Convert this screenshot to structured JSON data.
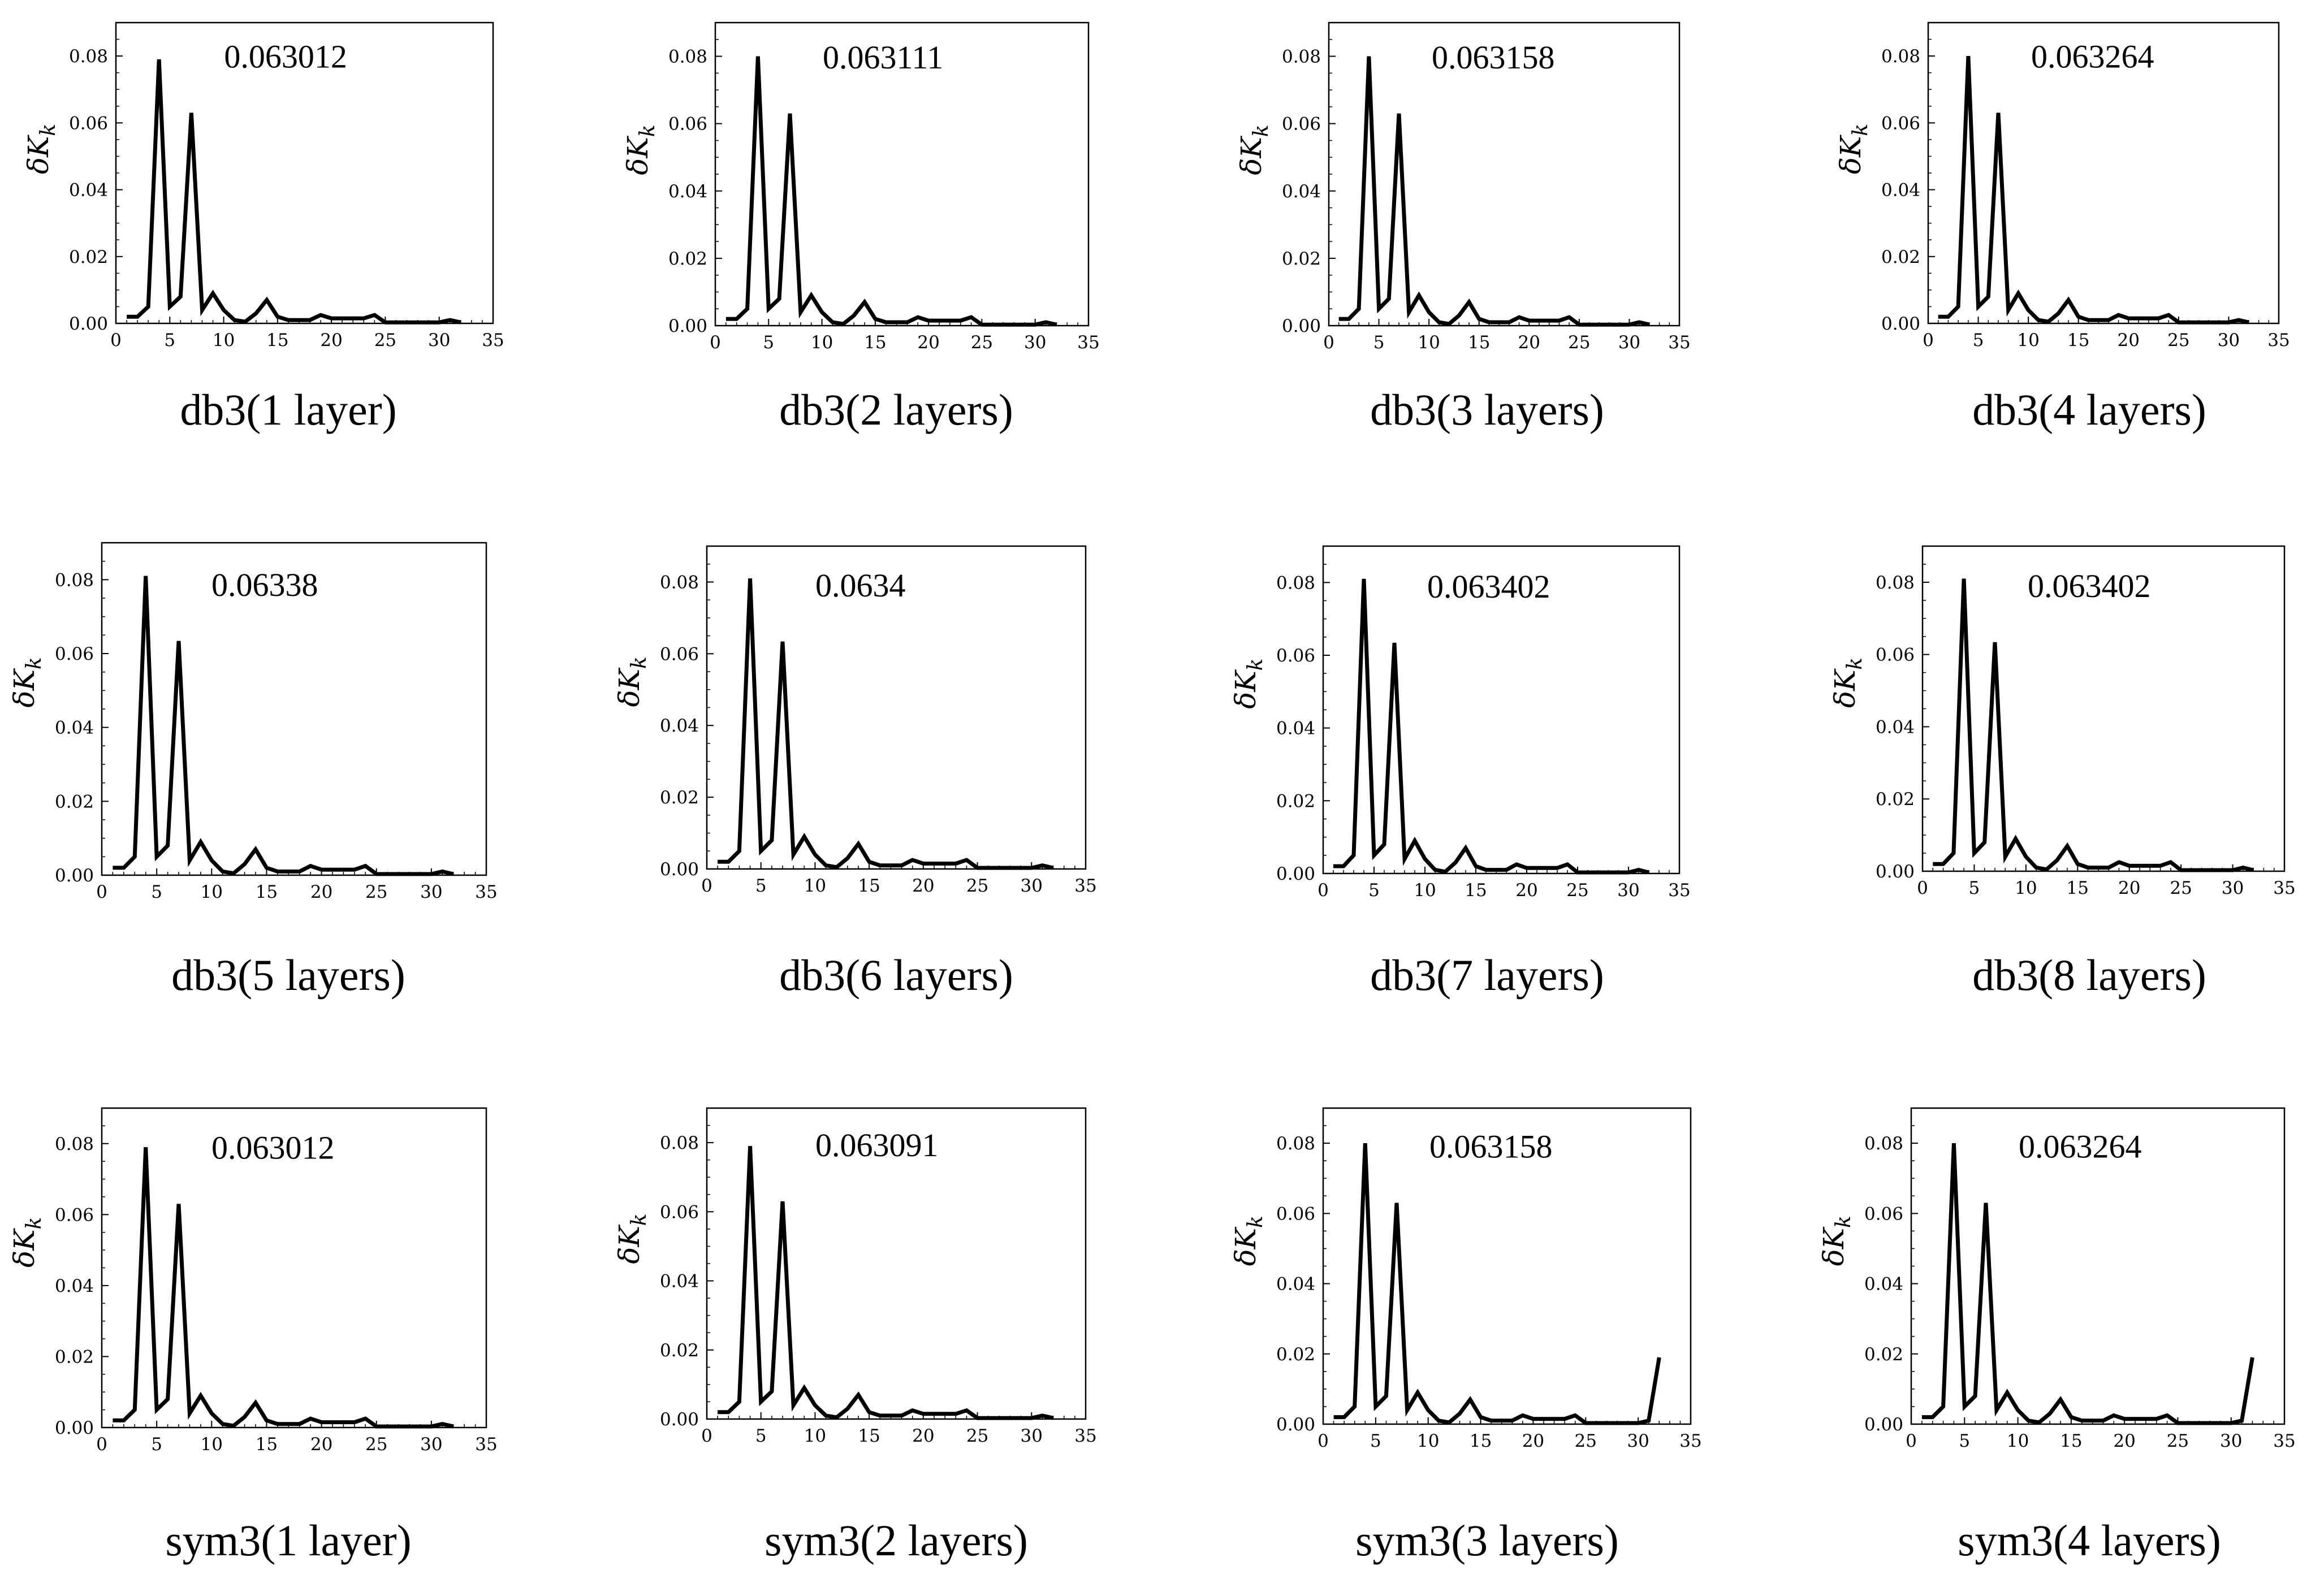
{
  "chart_data": [
    {
      "type": "line",
      "caption": "db3(1 layer)",
      "annotation": "0.063012",
      "ylabel": "δK_k",
      "xlim": [
        0,
        35
      ],
      "ylim": [
        0,
        0.09
      ],
      "xticks": [
        0,
        5,
        10,
        15,
        20,
        25,
        30,
        35
      ],
      "yticks": [
        0.0,
        0.02,
        0.04,
        0.06,
        0.08
      ],
      "series": [
        {
          "x": [
            1,
            2,
            3,
            4,
            5,
            6,
            7,
            8,
            9,
            10,
            11,
            12,
            13,
            14,
            15,
            16,
            17,
            18,
            19,
            20,
            21,
            22,
            23,
            24,
            25,
            26,
            27,
            28,
            29,
            30,
            31,
            32
          ],
          "y": [
            0.002,
            0.002,
            0.005,
            0.079,
            0.005,
            0.008,
            0.063,
            0.004,
            0.009,
            0.004,
            0.001,
            0.0005,
            0.003,
            0.007,
            0.002,
            0.001,
            0.001,
            0.001,
            0.0025,
            0.0015,
            0.0015,
            0.0015,
            0.0015,
            0.0025,
            0.0003,
            0.0003,
            0.0003,
            0.0003,
            0.0003,
            0.0003,
            0.001,
            0.0003
          ]
        }
      ]
    },
    {
      "type": "line",
      "caption": "db3(2 layers)",
      "annotation": "0.063111",
      "ylabel": "δK_k",
      "xlim": [
        0,
        35
      ],
      "ylim": [
        0,
        0.09
      ],
      "xticks": [
        0,
        5,
        10,
        15,
        20,
        25,
        30,
        35
      ],
      "yticks": [
        0.0,
        0.02,
        0.04,
        0.06,
        0.08
      ],
      "series": [
        {
          "x": [
            1,
            2,
            3,
            4,
            5,
            6,
            7,
            8,
            9,
            10,
            11,
            12,
            13,
            14,
            15,
            16,
            17,
            18,
            19,
            20,
            21,
            22,
            23,
            24,
            25,
            26,
            27,
            28,
            29,
            30,
            31,
            32
          ],
          "y": [
            0.002,
            0.002,
            0.005,
            0.08,
            0.005,
            0.008,
            0.063,
            0.004,
            0.009,
            0.004,
            0.001,
            0.0005,
            0.003,
            0.007,
            0.002,
            0.001,
            0.001,
            0.001,
            0.0025,
            0.0015,
            0.0015,
            0.0015,
            0.0015,
            0.0025,
            0.0003,
            0.0003,
            0.0003,
            0.0003,
            0.0003,
            0.0003,
            0.001,
            0.0003
          ]
        }
      ]
    },
    {
      "type": "line",
      "caption": "db3(3 layers)",
      "annotation": "0.063158",
      "ylabel": "δK_k",
      "xlim": [
        0,
        35
      ],
      "ylim": [
        0,
        0.09
      ],
      "xticks": [
        0,
        5,
        10,
        15,
        20,
        25,
        30,
        35
      ],
      "yticks": [
        0.0,
        0.02,
        0.04,
        0.06,
        0.08
      ],
      "series": [
        {
          "x": [
            1,
            2,
            3,
            4,
            5,
            6,
            7,
            8,
            9,
            10,
            11,
            12,
            13,
            14,
            15,
            16,
            17,
            18,
            19,
            20,
            21,
            22,
            23,
            24,
            25,
            26,
            27,
            28,
            29,
            30,
            31,
            32
          ],
          "y": [
            0.002,
            0.002,
            0.005,
            0.08,
            0.005,
            0.008,
            0.063,
            0.004,
            0.009,
            0.004,
            0.001,
            0.0005,
            0.003,
            0.007,
            0.002,
            0.001,
            0.001,
            0.001,
            0.0025,
            0.0015,
            0.0015,
            0.0015,
            0.0015,
            0.0025,
            0.0003,
            0.0003,
            0.0003,
            0.0003,
            0.0003,
            0.0003,
            0.001,
            0.0003
          ]
        }
      ]
    },
    {
      "type": "line",
      "caption": "db3(4 layers)",
      "annotation": "0.063264",
      "ylabel": "δK_k",
      "xlim": [
        0,
        35
      ],
      "ylim": [
        0,
        0.09
      ],
      "xticks": [
        0,
        5,
        10,
        15,
        20,
        25,
        30,
        35
      ],
      "yticks": [
        0.0,
        0.02,
        0.04,
        0.06,
        0.08
      ],
      "series": [
        {
          "x": [
            1,
            2,
            3,
            4,
            5,
            6,
            7,
            8,
            9,
            10,
            11,
            12,
            13,
            14,
            15,
            16,
            17,
            18,
            19,
            20,
            21,
            22,
            23,
            24,
            25,
            26,
            27,
            28,
            29,
            30,
            31,
            32
          ],
          "y": [
            0.002,
            0.002,
            0.005,
            0.08,
            0.005,
            0.008,
            0.063,
            0.004,
            0.009,
            0.004,
            0.001,
            0.0005,
            0.003,
            0.007,
            0.002,
            0.001,
            0.001,
            0.001,
            0.0025,
            0.0015,
            0.0015,
            0.0015,
            0.0015,
            0.0025,
            0.0003,
            0.0003,
            0.0003,
            0.0003,
            0.0003,
            0.0003,
            0.001,
            0.0003
          ]
        }
      ]
    },
    {
      "type": "line",
      "caption": "db3(5 layers)",
      "annotation": "0.06338",
      "ylabel": "δK_k",
      "xlim": [
        0,
        35
      ],
      "ylim": [
        0,
        0.09
      ],
      "xticks": [
        0,
        5,
        10,
        15,
        20,
        25,
        30,
        35
      ],
      "yticks": [
        0.0,
        0.02,
        0.04,
        0.06,
        0.08
      ],
      "series": [
        {
          "x": [
            1,
            2,
            3,
            4,
            5,
            6,
            7,
            8,
            9,
            10,
            11,
            12,
            13,
            14,
            15,
            16,
            17,
            18,
            19,
            20,
            21,
            22,
            23,
            24,
            25,
            26,
            27,
            28,
            29,
            30,
            31,
            32
          ],
          "y": [
            0.002,
            0.002,
            0.005,
            0.081,
            0.005,
            0.008,
            0.0634,
            0.004,
            0.009,
            0.004,
            0.001,
            0.0005,
            0.003,
            0.007,
            0.002,
            0.001,
            0.001,
            0.001,
            0.0025,
            0.0015,
            0.0015,
            0.0015,
            0.0015,
            0.0025,
            0.0003,
            0.0003,
            0.0003,
            0.0003,
            0.0003,
            0.0003,
            0.001,
            0.0003
          ]
        }
      ]
    },
    {
      "type": "line",
      "caption": "db3(6 layers)",
      "annotation": "0.0634",
      "ylabel": "δK_k",
      "xlim": [
        0,
        35
      ],
      "ylim": [
        0,
        0.09
      ],
      "xticks": [
        0,
        5,
        10,
        15,
        20,
        25,
        30,
        35
      ],
      "yticks": [
        0.0,
        0.02,
        0.04,
        0.06,
        0.08
      ],
      "series": [
        {
          "x": [
            1,
            2,
            3,
            4,
            5,
            6,
            7,
            8,
            9,
            10,
            11,
            12,
            13,
            14,
            15,
            16,
            17,
            18,
            19,
            20,
            21,
            22,
            23,
            24,
            25,
            26,
            27,
            28,
            29,
            30,
            31,
            32
          ],
          "y": [
            0.002,
            0.002,
            0.005,
            0.081,
            0.005,
            0.008,
            0.0634,
            0.004,
            0.009,
            0.004,
            0.001,
            0.0005,
            0.003,
            0.007,
            0.002,
            0.001,
            0.001,
            0.001,
            0.0025,
            0.0015,
            0.0015,
            0.0015,
            0.0015,
            0.0025,
            0.0003,
            0.0003,
            0.0003,
            0.0003,
            0.0003,
            0.0003,
            0.001,
            0.0003
          ]
        }
      ]
    },
    {
      "type": "line",
      "caption": "db3(7 layers)",
      "annotation": "0.063402",
      "ylabel": "δK_k",
      "xlim": [
        0,
        35
      ],
      "ylim": [
        0,
        0.09
      ],
      "xticks": [
        0,
        5,
        10,
        15,
        20,
        25,
        30,
        35
      ],
      "yticks": [
        0.0,
        0.02,
        0.04,
        0.06,
        0.08
      ],
      "series": [
        {
          "x": [
            1,
            2,
            3,
            4,
            5,
            6,
            7,
            8,
            9,
            10,
            11,
            12,
            13,
            14,
            15,
            16,
            17,
            18,
            19,
            20,
            21,
            22,
            23,
            24,
            25,
            26,
            27,
            28,
            29,
            30,
            31,
            32
          ],
          "y": [
            0.002,
            0.002,
            0.005,
            0.081,
            0.005,
            0.008,
            0.0634,
            0.004,
            0.009,
            0.004,
            0.001,
            0.0005,
            0.003,
            0.007,
            0.002,
            0.001,
            0.001,
            0.001,
            0.0025,
            0.0015,
            0.0015,
            0.0015,
            0.0015,
            0.0025,
            0.0003,
            0.0003,
            0.0003,
            0.0003,
            0.0003,
            0.0003,
            0.001,
            0.0003
          ]
        }
      ]
    },
    {
      "type": "line",
      "caption": "db3(8 layers)",
      "annotation": "0.063402",
      "ylabel": "δK_k",
      "xlim": [
        0,
        35
      ],
      "ylim": [
        0,
        0.09
      ],
      "xticks": [
        0,
        5,
        10,
        15,
        20,
        25,
        30,
        35
      ],
      "yticks": [
        0.0,
        0.02,
        0.04,
        0.06,
        0.08
      ],
      "series": [
        {
          "x": [
            1,
            2,
            3,
            4,
            5,
            6,
            7,
            8,
            9,
            10,
            11,
            12,
            13,
            14,
            15,
            16,
            17,
            18,
            19,
            20,
            21,
            22,
            23,
            24,
            25,
            26,
            27,
            28,
            29,
            30,
            31,
            32
          ],
          "y": [
            0.002,
            0.002,
            0.005,
            0.081,
            0.005,
            0.008,
            0.0634,
            0.004,
            0.009,
            0.004,
            0.001,
            0.0005,
            0.003,
            0.007,
            0.002,
            0.001,
            0.001,
            0.001,
            0.0025,
            0.0015,
            0.0015,
            0.0015,
            0.0015,
            0.0025,
            0.0003,
            0.0003,
            0.0003,
            0.0003,
            0.0003,
            0.0003,
            0.001,
            0.0003
          ]
        }
      ]
    },
    {
      "type": "line",
      "caption": "sym3(1 layer)",
      "annotation": "0.063012",
      "ylabel": "δK_k",
      "xlim": [
        0,
        35
      ],
      "ylim": [
        0,
        0.09
      ],
      "xticks": [
        0,
        5,
        10,
        15,
        20,
        25,
        30,
        35
      ],
      "yticks": [
        0.0,
        0.02,
        0.04,
        0.06,
        0.08
      ],
      "series": [
        {
          "x": [
            1,
            2,
            3,
            4,
            5,
            6,
            7,
            8,
            9,
            10,
            11,
            12,
            13,
            14,
            15,
            16,
            17,
            18,
            19,
            20,
            21,
            22,
            23,
            24,
            25,
            26,
            27,
            28,
            29,
            30,
            31,
            32
          ],
          "y": [
            0.002,
            0.002,
            0.005,
            0.079,
            0.005,
            0.008,
            0.063,
            0.004,
            0.009,
            0.004,
            0.001,
            0.0005,
            0.003,
            0.007,
            0.002,
            0.001,
            0.001,
            0.001,
            0.0025,
            0.0015,
            0.0015,
            0.0015,
            0.0015,
            0.0025,
            0.0003,
            0.0003,
            0.0003,
            0.0003,
            0.0003,
            0.0003,
            0.001,
            0.0003
          ]
        }
      ]
    },
    {
      "type": "line",
      "caption": "sym3(2 layers)",
      "annotation": "0.063091",
      "ylabel": "δK_k",
      "xlim": [
        0,
        35
      ],
      "ylim": [
        0,
        0.09
      ],
      "xticks": [
        0,
        5,
        10,
        15,
        20,
        25,
        30,
        35
      ],
      "yticks": [
        0.0,
        0.02,
        0.04,
        0.06,
        0.08
      ],
      "series": [
        {
          "x": [
            1,
            2,
            3,
            4,
            5,
            6,
            7,
            8,
            9,
            10,
            11,
            12,
            13,
            14,
            15,
            16,
            17,
            18,
            19,
            20,
            21,
            22,
            23,
            24,
            25,
            26,
            27,
            28,
            29,
            30,
            31,
            32
          ],
          "y": [
            0.002,
            0.002,
            0.005,
            0.079,
            0.005,
            0.008,
            0.063,
            0.004,
            0.009,
            0.004,
            0.001,
            0.0005,
            0.003,
            0.007,
            0.002,
            0.001,
            0.001,
            0.001,
            0.0025,
            0.0015,
            0.0015,
            0.0015,
            0.0015,
            0.0025,
            0.0003,
            0.0003,
            0.0003,
            0.0003,
            0.0003,
            0.0003,
            0.001,
            0.0003
          ]
        }
      ]
    },
    {
      "type": "line",
      "caption": "sym3(3 layers)",
      "annotation": "0.063158",
      "ylabel": "δK_k",
      "xlim": [
        0,
        35
      ],
      "ylim": [
        0,
        0.09
      ],
      "xticks": [
        0,
        5,
        10,
        15,
        20,
        25,
        30,
        35
      ],
      "yticks": [
        0.0,
        0.02,
        0.04,
        0.06,
        0.08
      ],
      "series": [
        {
          "x": [
            1,
            2,
            3,
            4,
            5,
            6,
            7,
            8,
            9,
            10,
            11,
            12,
            13,
            14,
            15,
            16,
            17,
            18,
            19,
            20,
            21,
            22,
            23,
            24,
            25,
            26,
            27,
            28,
            29,
            30,
            31,
            32
          ],
          "y": [
            0.002,
            0.002,
            0.005,
            0.08,
            0.005,
            0.008,
            0.063,
            0.004,
            0.009,
            0.004,
            0.001,
            0.0005,
            0.003,
            0.007,
            0.002,
            0.001,
            0.001,
            0.001,
            0.0025,
            0.0015,
            0.0015,
            0.0015,
            0.0015,
            0.0025,
            0.0003,
            0.0003,
            0.0003,
            0.0003,
            0.0003,
            0.0003,
            0.001,
            0.019
          ]
        }
      ]
    },
    {
      "type": "line",
      "caption": "sym3(4 layers)",
      "annotation": "0.063264",
      "ylabel": "δK_k",
      "xlim": [
        0,
        35
      ],
      "ylim": [
        0,
        0.09
      ],
      "xticks": [
        0,
        5,
        10,
        15,
        20,
        25,
        30,
        35
      ],
      "yticks": [
        0.0,
        0.02,
        0.04,
        0.06,
        0.08
      ],
      "series": [
        {
          "x": [
            1,
            2,
            3,
            4,
            5,
            6,
            7,
            8,
            9,
            10,
            11,
            12,
            13,
            14,
            15,
            16,
            17,
            18,
            19,
            20,
            21,
            22,
            23,
            24,
            25,
            26,
            27,
            28,
            29,
            30,
            31,
            32
          ],
          "y": [
            0.002,
            0.002,
            0.005,
            0.08,
            0.005,
            0.008,
            0.063,
            0.004,
            0.009,
            0.004,
            0.001,
            0.0005,
            0.003,
            0.007,
            0.002,
            0.001,
            0.001,
            0.001,
            0.0025,
            0.0015,
            0.0015,
            0.0015,
            0.0015,
            0.0025,
            0.0003,
            0.0003,
            0.0003,
            0.0003,
            0.0003,
            0.0003,
            0.001,
            0.019
          ]
        }
      ]
    }
  ]
}
